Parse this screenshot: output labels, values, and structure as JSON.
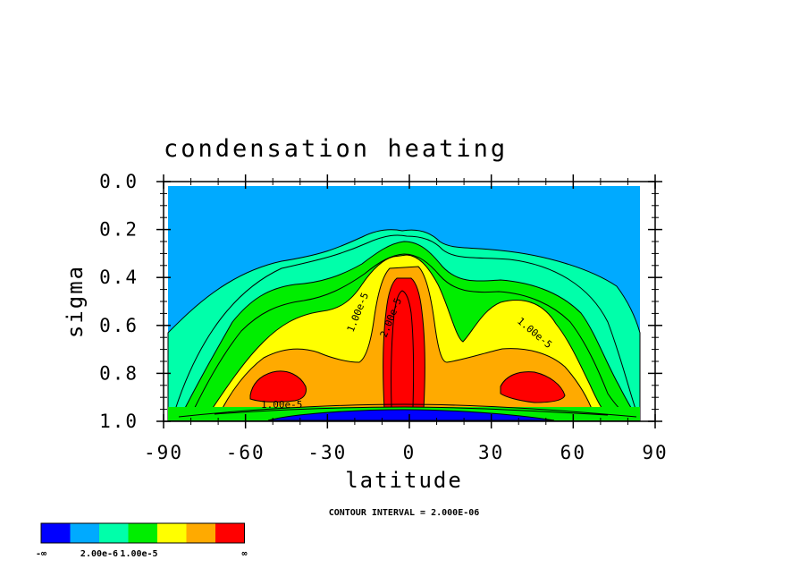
{
  "chart_data": {
    "type": "contour",
    "title": "condensation heating",
    "xlabel": "latitude",
    "ylabel": "sigma",
    "xlim": [
      -90,
      90
    ],
    "ylim": [
      1.0,
      0.0
    ],
    "x_ticks": [
      "-90",
      "-60",
      "-30",
      "0",
      "30",
      "60",
      "90"
    ],
    "y_ticks": [
      "0.0",
      "0.2",
      "0.4",
      "0.6",
      "0.8",
      "1.0"
    ],
    "contour_interval_label": "CONTOUR INTERVAL = 2.000E-06",
    "contour_labels": [
      "1.00e-5",
      "2.00e-5",
      "1.00e-5",
      "1.00e-5"
    ],
    "colorbar": {
      "colors": [
        "#0000ff",
        "#00aaff",
        "#00ffaa",
        "#00ee00",
        "#ffff00",
        "#ffaa00",
        "#ff0000"
      ],
      "labels": [
        "-∞",
        "2.00e-6",
        "1.00e-5",
        "∞"
      ]
    },
    "regions": [
      {
        "name": "upper-atmosphere",
        "color": "#00aaff",
        "min_sigma_top": 0.0
      },
      {
        "name": "equatorial-maximum",
        "latitude": 0,
        "sigma": [
          0.42,
          0.95
        ],
        "color": "#ff0000"
      },
      {
        "name": "southern-midlatitude-maximum",
        "latitude": -50,
        "sigma": [
          0.82,
          0.92
        ],
        "color": "#ff0000"
      },
      {
        "name": "northern-midlatitude-maximum",
        "latitude": 50,
        "sigma": [
          0.82,
          0.92
        ],
        "color": "#ff0000"
      }
    ]
  }
}
